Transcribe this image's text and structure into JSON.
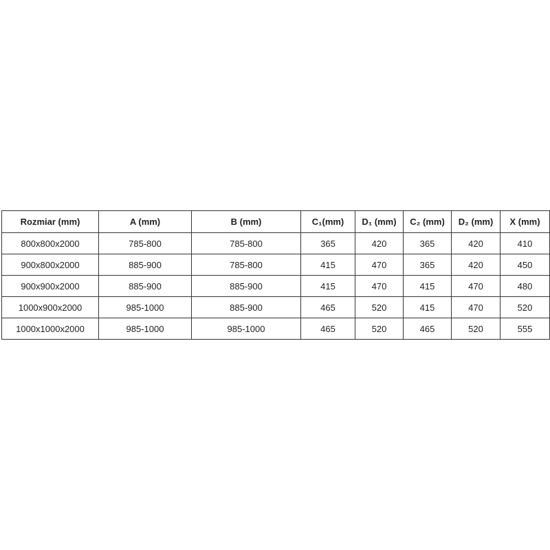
{
  "table": {
    "headers": [
      "Rozmiar (mm)",
      "A (mm)",
      "B (mm)",
      "C₁(mm)",
      "D₁ (mm)",
      "C₂ (mm)",
      "D₂ (mm)",
      "X (mm)"
    ],
    "rows": [
      [
        "800x800x2000",
        "785-800",
        "785-800",
        "365",
        "420",
        "365",
        "420",
        "410"
      ],
      [
        "900x800x2000",
        "885-900",
        "785-800",
        "415",
        "470",
        "365",
        "420",
        "450"
      ],
      [
        "900x900x2000",
        "885-900",
        "885-900",
        "415",
        "470",
        "415",
        "470",
        "480"
      ],
      [
        "1000x900x2000",
        "985-1000",
        "885-900",
        "465",
        "520",
        "415",
        "470",
        "520"
      ],
      [
        "1000x1000x2000",
        "985-1000",
        "985-1000",
        "465",
        "520",
        "465",
        "520",
        "555"
      ]
    ]
  }
}
